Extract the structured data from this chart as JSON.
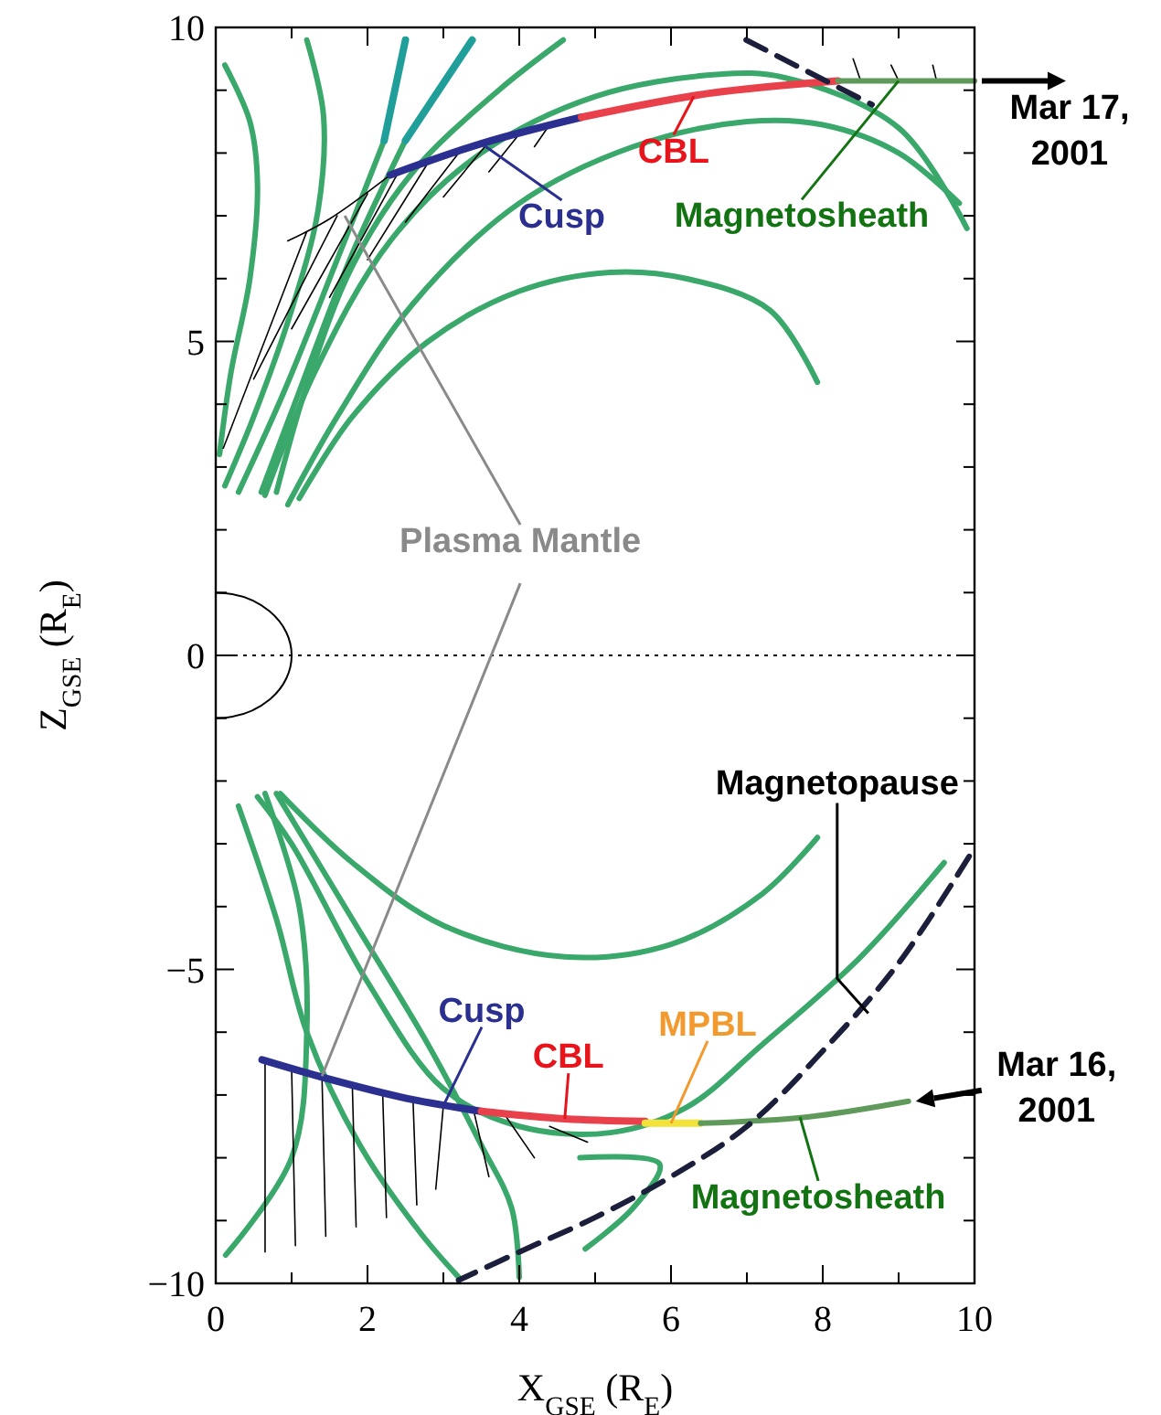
{
  "chart_data": {
    "type": "line",
    "xlabel": "X$_{GSE}$ (R$_{E}$)",
    "ylabel": "Z$_{GSE}$ (R$_{E}$)",
    "xlim": [
      0,
      10
    ],
    "ylim": [
      -10,
      10
    ],
    "xticks": [
      0,
      {
        "value": 1,
        "label": null
      },
      2,
      {
        "value": 3,
        "label": null
      },
      4,
      {
        "value": 5,
        "label": null
      },
      6,
      {
        "value": 7,
        "label": null
      },
      8,
      {
        "value": 9,
        "label": null
      },
      10
    ],
    "yticks": [
      {
        "value": -10,
        "label": "−10"
      },
      {
        "value": -9,
        "label": null
      },
      {
        "value": -8,
        "label": null
      },
      {
        "value": -7,
        "label": null
      },
      {
        "value": -6,
        "label": null
      },
      {
        "value": -5,
        "label": "−5"
      },
      {
        "value": -4,
        "label": null
      },
      {
        "value": -3,
        "label": null
      },
      {
        "value": -2,
        "label": null
      },
      {
        "value": -1,
        "label": null
      },
      0,
      {
        "value": 1,
        "label": null
      },
      {
        "value": 2,
        "label": null
      },
      {
        "value": 3,
        "label": null
      },
      {
        "value": 4,
        "label": null
      },
      5,
      {
        "value": 6,
        "label": null
      },
      {
        "value": 7,
        "label": null
      },
      {
        "value": 8,
        "label": null
      },
      {
        "value": 9,
        "label": null
      },
      10
    ],
    "grid": false,
    "marker": "none",
    "ref_lines": [
      {
        "axis": "y",
        "value": 0,
        "line_style": "dotted",
        "color": "#000000"
      }
    ],
    "series": [
      {
        "color": "#3aa86b",
        "x": [
          0.12,
          0.45,
          0.55,
          0.45,
          0.2,
          0.05
        ],
        "values": [
          9.4,
          8.5,
          7.5,
          6,
          4.5,
          3.2
        ]
      },
      {
        "color": "#3aa86b",
        "x": [
          1.2,
          1.42,
          1.35,
          1.0,
          0.5,
          0.12
        ],
        "values": [
          9.8,
          8.6,
          7.1,
          5.5,
          3.8,
          2.7
        ]
      },
      {
        "color": "#3aa86b",
        "x": [
          2.22,
          1.6,
          0.9,
          0.3
        ],
        "values": [
          8.2,
          6.3,
          4.2,
          2.6
        ]
      },
      {
        "color": "#3aa86b",
        "x": [
          2.5,
          1.8,
          1.1,
          0.6
        ],
        "values": [
          8.2,
          6.4,
          4.2,
          2.6
        ]
      },
      {
        "color": "#3aa86b",
        "x": [
          4.58,
          3.73,
          2.6,
          1.8,
          1.2,
          0.8
        ],
        "values": [
          9.8,
          9.0,
          7.7,
          6.2,
          4.3,
          2.6
        ]
      },
      {
        "color": "#3aa86b",
        "x": [
          9.9,
          9.0,
          7.5,
          6.6,
          5,
          3.5,
          2.3,
          1.3,
          0.65
        ],
        "values": [
          6.8,
          8.4,
          9.2,
          9.25,
          8.9,
          8.0,
          6.6,
          4.5,
          2.55
        ]
      },
      {
        "color": "#3aa86b",
        "x": [
          9.8,
          9.0,
          8,
          7,
          5.5,
          4,
          2.6,
          1.6,
          0.95
        ],
        "values": [
          7.2,
          8.0,
          8.45,
          8.5,
          8.1,
          7.2,
          5.6,
          3.8,
          2.4
        ]
      },
      {
        "color": "#3aa86b",
        "x": [
          7.93,
          7.3,
          6.2,
          5.2,
          4,
          2.8,
          1.8,
          1.1
        ],
        "values": [
          4.35,
          5.5,
          6.0,
          6.1,
          5.8,
          5.0,
          3.8,
          2.5
        ]
      },
      {
        "color": "#1f9e9a",
        "x": [
          2.5,
          2.22,
          null,
          3.38,
          2.5
        ],
        "values": [
          9.8,
          8.2,
          null,
          9.8,
          8.2
        ]
      },
      {
        "color": "#3aa86b",
        "x": [
          0.85,
          1.8,
          3,
          4.6,
          6,
          7.2,
          7.93
        ],
        "values": [
          -2.2,
          -3.3,
          -4.3,
          -4.8,
          -4.6,
          -3.8,
          -2.9
        ]
      },
      {
        "color": "#3aa86b",
        "x": [
          9.6,
          8.5,
          7.2,
          6.2,
          5.2,
          4.0,
          3.0,
          2.0,
          1.0,
          0.55
        ],
        "values": [
          -3.3,
          -4.8,
          -6.2,
          -7.2,
          -7.6,
          -7.5,
          -6.9,
          -5.2,
          -3.0,
          -2.25
        ]
      },
      {
        "color": "#3aa86b",
        "x": [
          0.3,
          0.8,
          1.2,
          1.9,
          2.7,
          3.2
        ],
        "values": [
          -2.4,
          -4.2,
          -6.0,
          -7.8,
          -9.2,
          -9.9
        ]
      },
      {
        "color": "#3aa86b",
        "x": [
          0.65,
          1.1,
          1.2,
          1.0,
          0.13
        ],
        "values": [
          -2.2,
          -4,
          -6,
          -8,
          -9.55
        ]
      },
      {
        "color": "#3aa86b",
        "x": [
          0.8,
          1.8,
          2.8,
          3.5,
          3.9,
          4.0
        ],
        "values": [
          -2.2,
          -4.2,
          -6.2,
          -7.8,
          -8.8,
          -9.9
        ]
      },
      {
        "color": "#3aa86b",
        "x": [
          4.8,
          5.85,
          5.5,
          4.87
        ],
        "values": [
          -8.0,
          -8.1,
          -8.8,
          -9.45
        ]
      },
      {
        "color": "#000000",
        "x": [
          0.95,
          1.5,
          2.3,
          null,
          1.2,
          0.1,
          null,
          1.6,
          0.5,
          null,
          2.0,
          1.0,
          null,
          2.4,
          1.5,
          null,
          2.8,
          2.0,
          null,
          3.2,
          2.5,
          null,
          3.6,
          3.0,
          null,
          4.0,
          3.6,
          null,
          4.4,
          4.2,
          null,
          8.5,
          8.4,
          null,
          9.0,
          8.9,
          null,
          9.5,
          9.45
        ],
        "values": [
          6.6,
          6.95,
          7.65,
          null,
          6.75,
          3.3,
          null,
          7.0,
          4.4,
          null,
          7.35,
          5.2,
          null,
          7.68,
          5.7,
          null,
          7.85,
          6.3,
          null,
          8.0,
          6.9,
          null,
          8.18,
          7.3,
          null,
          8.3,
          7.7,
          null,
          8.45,
          8.1,
          null,
          9.15,
          9.5,
          null,
          9.15,
          9.4,
          null,
          9.15,
          9.4
        ]
      },
      {
        "color": "#000000",
        "x": [
          0.65,
          0.65,
          null,
          1.0,
          1.05,
          null,
          1.4,
          1.45,
          null,
          1.8,
          1.85,
          null,
          2.2,
          2.25,
          null,
          2.6,
          2.65,
          null,
          3.0,
          2.9,
          null,
          3.4,
          3.6,
          null,
          3.8,
          4.2,
          null,
          4.4,
          4.9
        ],
        "values": [
          -6.45,
          -9.5,
          null,
          -6.58,
          -9.4,
          null,
          -6.7,
          -9.25,
          null,
          -6.85,
          -9.1,
          null,
          -6.97,
          -8.95,
          null,
          -7.08,
          -8.75,
          null,
          -7.17,
          -8.5,
          null,
          -7.25,
          -8.3,
          null,
          -7.3,
          -8.0,
          null,
          -7.5,
          -7.75
        ]
      },
      {
        "color": "#2b2f8f",
        "x": [
          2.3,
          3.5,
          4.82,
          null,
          0.61,
          1.5,
          2.5,
          3.5
        ],
        "values": [
          7.65,
          8.15,
          8.57,
          null,
          -6.44,
          -6.75,
          -7.05,
          -7.26
        ]
      },
      {
        "color": "#e8414b",
        "x": [
          4.82,
          6.5,
          8.2,
          null,
          3.5,
          4.6,
          5.66
        ],
        "values": [
          8.57,
          8.95,
          9.15,
          null,
          -7.26,
          -7.38,
          -7.42
        ]
      },
      {
        "color": "#f2e23a",
        "x": [
          5.66,
          6.39
        ],
        "values": [
          -7.45,
          -7.45
        ]
      },
      {
        "color": "#5f9a5a",
        "x": [
          8.2,
          10,
          null,
          6.39,
          7.8,
          9.13
        ],
        "values": [
          9.15,
          9.15,
          null,
          -7.45,
          -7.35,
          -7.1
        ]
      },
      {
        "color": "#1b1f3b",
        "line_style": "dashed",
        "x": [
          6.99,
          8.65,
          null,
          9.93,
          9.0,
          8.0,
          7.0,
          6.0,
          5.0,
          4.0,
          3.2
        ],
        "values": [
          9.8,
          8.77,
          null,
          -3.2,
          -4.9,
          -6.3,
          -7.5,
          -8.3,
          -8.95,
          -9.5,
          -9.95
        ]
      }
    ],
    "annotations": [
      {
        "text": "Cusp",
        "x": 3.5,
        "y": 8.15
      },
      {
        "text": "CBL",
        "x": 6.3,
        "y": 8.9
      },
      {
        "text": "Magnetosheath",
        "x": 9.0,
        "y": 9.15
      },
      {
        "text": "Mar 17, 2001",
        "x": 10,
        "y": 9.15
      },
      {
        "text": "Plasma Mantle",
        "x": 1.7,
        "y": 7.0
      },
      {
        "text": "Magnetopause",
        "x": 8.6,
        "y": -5.7
      },
      {
        "text": "Cusp",
        "x": 3.0,
        "y": -7.17
      },
      {
        "text": "CBL",
        "x": 4.6,
        "y": -7.38
      },
      {
        "text": "MPBL",
        "x": 6.0,
        "y": -7.45
      },
      {
        "text": "Magnetosheath",
        "x": 7.7,
        "y": -7.35
      },
      {
        "text": "Mar 16, 2001",
        "x": 9.13,
        "y": -7.1
      }
    ]
  }
}
